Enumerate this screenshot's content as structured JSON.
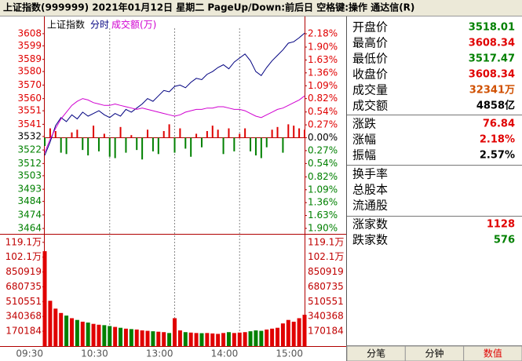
{
  "chart_data": {
    "type": "line",
    "title": "上证指数(999999)  2021年01月12日 星期二 PageUp/Down:前后日 空格键:操作 通达信(R)",
    "legend_label": "上证指数",
    "x": [
      0,
      5,
      10,
      15,
      20,
      25,
      30,
      35,
      40,
      45,
      50,
      55,
      60,
      65,
      70,
      75,
      80,
      85,
      90,
      95,
      100,
      105,
      110,
      115,
      120,
      125,
      130,
      135,
      140,
      145,
      150,
      155,
      160,
      165,
      170,
      175,
      180,
      185,
      190,
      195,
      200,
      205,
      210,
      215,
      220,
      225,
      230,
      235,
      240
    ],
    "xlim": [
      0,
      240
    ],
    "xticks": [
      {
        "value": 0,
        "label": "09:30"
      },
      {
        "value": 60,
        "label": "10:30"
      },
      {
        "value": 120,
        "label": "13:00"
      },
      {
        "value": 180,
        "label": "14:00"
      },
      {
        "value": 240,
        "label": "15:00"
      }
    ],
    "ylim": [
      3460,
      3612
    ],
    "yticks": [
      3608,
      3599,
      3589,
      3580,
      3570,
      3560,
      3551,
      3541,
      3532,
      3522,
      3512,
      3503,
      3493,
      3484,
      3474,
      3464
    ],
    "y2lim": [
      -2.015,
      2.295
    ],
    "y2ticks": [
      {
        "value": 2.18,
        "label": "2.18%"
      },
      {
        "value": 1.9,
        "label": "1.90%"
      },
      {
        "value": 1.63,
        "label": "1.63%"
      },
      {
        "value": 1.36,
        "label": "1.36%"
      },
      {
        "value": 1.09,
        "label": "1.09%"
      },
      {
        "value": 0.82,
        "label": "0.82%"
      },
      {
        "value": 0.54,
        "label": "0.54%"
      },
      {
        "value": 0.27,
        "label": "0.27%"
      },
      {
        "value": 0,
        "label": "0.00%"
      },
      {
        "value": -0.27,
        "label": "0.27%"
      },
      {
        "value": -0.54,
        "label": "0.54%"
      },
      {
        "value": -0.82,
        "label": "0.82%"
      },
      {
        "value": -1.09,
        "label": "1.09%"
      },
      {
        "value": -1.36,
        "label": "1.36%"
      },
      {
        "value": -1.63,
        "label": "1.63%"
      },
      {
        "value": -1.9,
        "label": "1.90%"
      }
    ],
    "up_color": "#e00000",
    "down_color": "#008000",
    "series": [
      {
        "name": "分时",
        "color": "#000080",
        "values": [
          3518,
          3528,
          3540,
          3546,
          3543,
          3548,
          3545,
          3550,
          3547,
          3549,
          3551,
          3548,
          3546,
          3549,
          3547,
          3552,
          3550,
          3553,
          3556,
          3560,
          3558,
          3562,
          3566,
          3565,
          3569,
          3570,
          3568,
          3572,
          3575,
          3574,
          3578,
          3580,
          3583,
          3585,
          3582,
          3587,
          3590,
          3593,
          3588,
          3580,
          3577,
          3583,
          3588,
          3592,
          3596,
          3601,
          3602,
          3605,
          3608.34
        ]
      },
      {
        "name": "成交额(万)",
        "color": "#d000d0",
        "values": [
          3520,
          3530,
          3538,
          3545,
          3550,
          3555,
          3558,
          3560,
          3559,
          3557,
          3556,
          3555,
          3555,
          3556,
          3555,
          3554,
          3553,
          3552,
          3553,
          3552,
          3551,
          3550,
          3549,
          3548,
          3547,
          3548,
          3550,
          3551,
          3552,
          3552,
          3553,
          3553,
          3554,
          3554,
          3553,
          3552,
          3552,
          3551,
          3549,
          3547,
          3546,
          3548,
          3550,
          3552,
          3553,
          3555,
          3557,
          3559,
          3562
        ]
      }
    ],
    "strength_values": [
      3525,
      3538,
      3536,
      3520,
      3519,
      3535,
      3537,
      3522,
      3518,
      3540,
      3521,
      3534,
      3517,
      3516,
      3539,
      3520,
      3533,
      3522,
      3515,
      3537,
      3521,
      3519,
      3536,
      3541,
      3520,
      3538,
      3523,
      3517,
      3534,
      3524,
      3536,
      3540,
      3537,
      3519,
      3538,
      3521,
      3534,
      3538,
      3521,
      3518,
      3516,
      3524,
      3537,
      3539,
      3520,
      3541,
      3540,
      3538,
      3537
    ],
    "volume": {
      "values": [
        1089000,
        520000,
        430000,
        380000,
        350000,
        320000,
        300000,
        280000,
        270000,
        255000,
        245000,
        240000,
        230000,
        220000,
        210000,
        200000,
        195000,
        190000,
        180000,
        175000,
        170000,
        165000,
        160000,
        150000,
        320000,
        180000,
        160000,
        155000,
        150000,
        148000,
        150000,
        145000,
        140000,
        150000,
        160000,
        150000,
        155000,
        160000,
        170000,
        180000,
        175000,
        190000,
        200000,
        210000,
        260000,
        300000,
        280000,
        320000,
        360000
      ],
      "ylim": [
        0,
        1270000
      ],
      "yticks": [
        {
          "value": 1191000,
          "label": "119.1万"
        },
        {
          "value": 1021000,
          "label": "102.1万"
        },
        850919,
        680735,
        510551,
        340368,
        170184
      ]
    }
  },
  "info": {
    "groups": [
      [
        {
          "label": "开盘价",
          "value": "3518.01",
          "color": "#008000"
        },
        {
          "label": "最高价",
          "value": "3608.34",
          "color": "#e00000"
        },
        {
          "label": "最低价",
          "value": "3517.47",
          "color": "#008000"
        },
        {
          "label": "收盘价",
          "value": "3608.34",
          "color": "#e00000"
        },
        {
          "label": "成交量",
          "value": "32341万",
          "color": "#d05000"
        },
        {
          "label": "成交额",
          "value": "4858亿",
          "color": "#000000"
        }
      ],
      [
        {
          "label": "涨跌",
          "value": "76.84",
          "color": "#e00000"
        },
        {
          "label": "涨幅",
          "value": "2.18%",
          "color": "#e00000"
        },
        {
          "label": "振幅",
          "value": "2.57%",
          "color": "#000000"
        }
      ],
      [
        {
          "label": "换手率"
        },
        {
          "label": "总股本"
        },
        {
          "label": "流通股"
        }
      ],
      [
        {
          "label": "涨家数",
          "value": "1128",
          "color": "#e00000"
        },
        {
          "label": "跌家数",
          "value": "576",
          "color": "#008000"
        }
      ]
    ],
    "tabs": [
      "分笔",
      "分钟",
      "数值"
    ],
    "active_tab": 2
  }
}
